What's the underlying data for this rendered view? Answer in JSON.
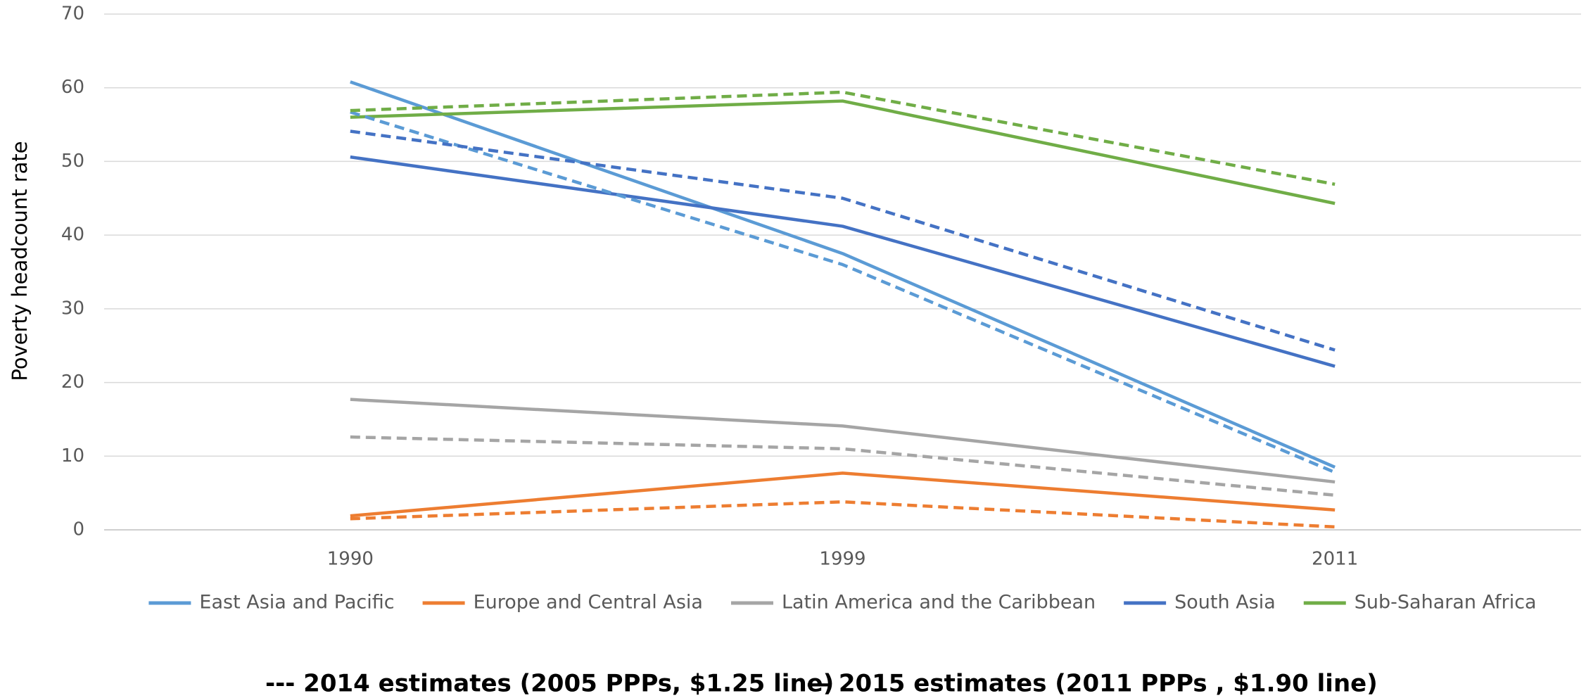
{
  "chart_data": {
    "type": "line",
    "y_label": "Poverty headcount rate",
    "categories": [
      "1990",
      "1999",
      "2011"
    ],
    "series": [
      {
        "name": "East Asia and Pacific",
        "color": "#5b9bd5",
        "values": [
          60.8,
          37.5,
          8.5
        ]
      },
      {
        "name": "Europe and Central Asia",
        "color": "#ed7d31",
        "values": [
          1.9,
          7.7,
          2.7
        ]
      },
      {
        "name": "Latin America and the Caribbean",
        "color": "#a5a5a5",
        "values": [
          17.7,
          14.1,
          6.5
        ]
      },
      {
        "name": "South Asia",
        "color": "#4472c4",
        "values": [
          50.6,
          41.2,
          22.2
        ]
      },
      {
        "name": "Sub-Saharan Africa",
        "color": "#70ad47",
        "values": [
          56.0,
          58.2,
          44.3
        ]
      },
      {
        "color": "#5b9bd5",
        "dashed": true,
        "values": [
          56.7,
          36.0,
          7.8
        ]
      },
      {
        "color": "#ed7d31",
        "dashed": true,
        "values": [
          1.5,
          3.8,
          0.4
        ]
      },
      {
        "color": "#a5a5a5",
        "dashed": true,
        "values": [
          12.6,
          11.0,
          4.7
        ]
      },
      {
        "color": "#4472c4",
        "dashed": true,
        "values": [
          54.1,
          45.0,
          24.4
        ]
      },
      {
        "color": "#70ad47",
        "dashed": true,
        "values": [
          56.9,
          59.4,
          46.9
        ]
      }
    ],
    "ylim": [
      0,
      70
    ],
    "yticks": [
      0,
      10,
      20,
      30,
      40,
      50,
      60,
      70
    ],
    "grid": true,
    "legend": "bottom",
    "annotations": [
      "--- 2014 estimates (2005 PPPs, $1.25 line)",
      "— 2015 estimates (2011 PPPs , $1.90 line)"
    ]
  }
}
